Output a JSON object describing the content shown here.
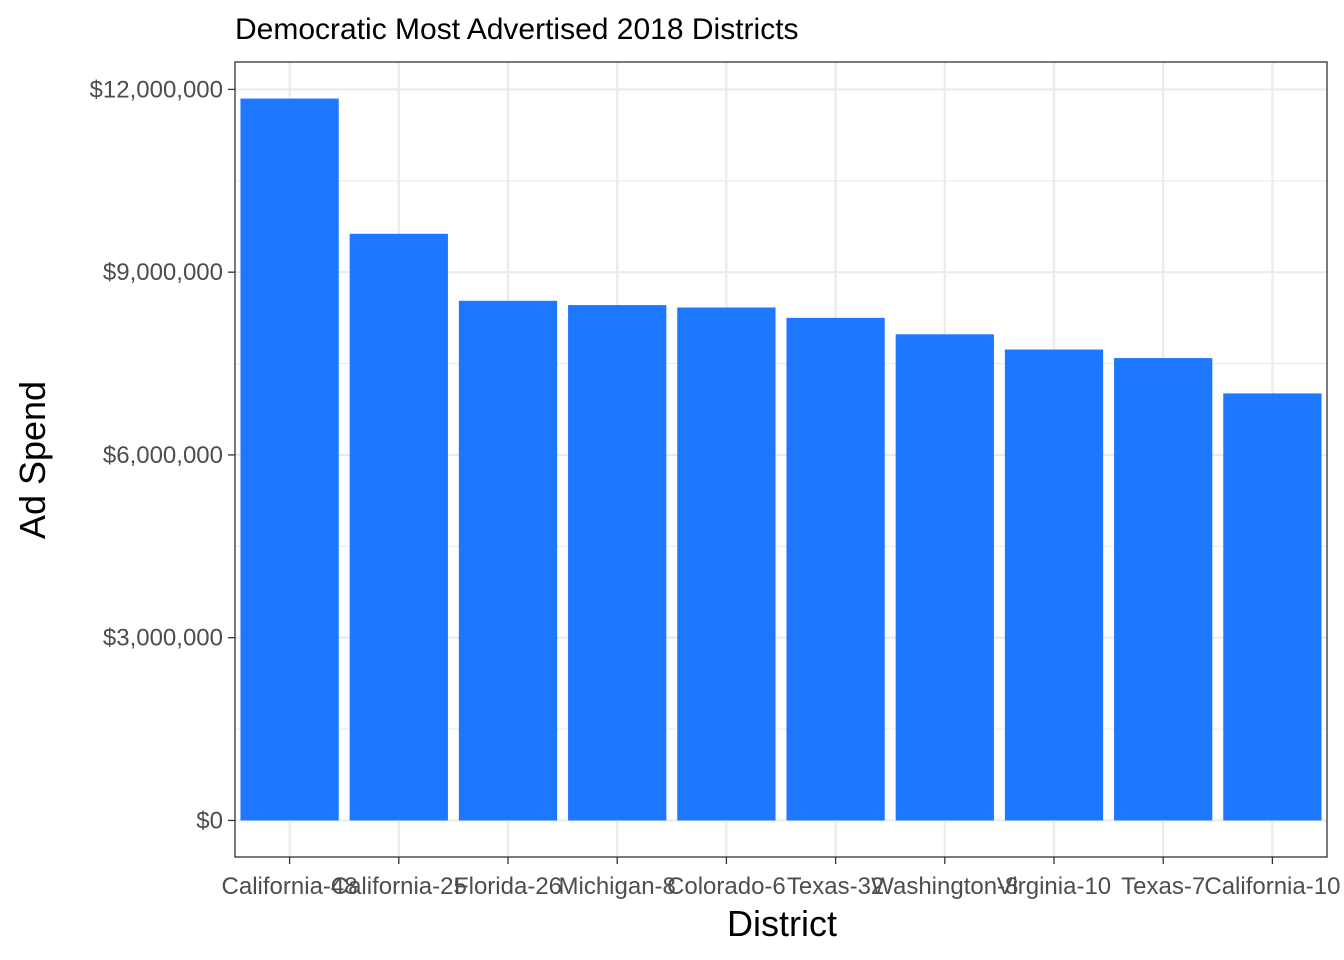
{
  "chart_data": {
    "type": "bar",
    "title": "Democratic Most Advertised 2018 Districts",
    "xlabel": "District",
    "ylabel": "Ad Spend",
    "categories": [
      "California-48",
      "California-25",
      "Florida-26",
      "Michigan-8",
      "Colorado-6",
      "Texas-32",
      "Washington-8",
      "Virginia-10",
      "Texas-7",
      "California-10"
    ],
    "values": [
      11850000,
      9630000,
      8530000,
      8460000,
      8420000,
      8250000,
      7980000,
      7730000,
      7590000,
      7010000
    ],
    "ylim": [
      -600000,
      12450000
    ],
    "y_ticks": [
      0,
      3000000,
      6000000,
      9000000,
      12000000
    ],
    "y_tick_labels": [
      "$0",
      "$3,000,000",
      "$6,000,000",
      "$9,000,000",
      "$12,000,000"
    ],
    "grid": true,
    "legend": "none",
    "bar_color": "#1E78FF",
    "theme": "bw"
  }
}
